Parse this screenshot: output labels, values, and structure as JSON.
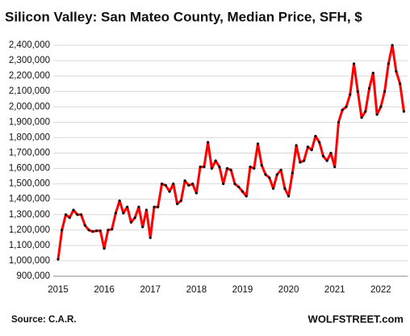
{
  "chart_data": {
    "type": "line",
    "title": "Silicon Valley: San Mateo County, Median Price, SFH, $",
    "source": "Source: C.A.R.",
    "brand": "WOLFSTREET.com",
    "categories": [
      "2015",
      null,
      null,
      null,
      null,
      null,
      null,
      null,
      null,
      null,
      null,
      null,
      "2016",
      null,
      null,
      null,
      null,
      null,
      null,
      null,
      null,
      null,
      null,
      null,
      "2017",
      null,
      null,
      null,
      null,
      null,
      null,
      null,
      null,
      null,
      null,
      null,
      "2018",
      null,
      null,
      null,
      null,
      null,
      null,
      null,
      null,
      null,
      null,
      null,
      "2019",
      null,
      null,
      null,
      null,
      null,
      null,
      null,
      null,
      null,
      null,
      null,
      "2020",
      null,
      null,
      null,
      null,
      null,
      null,
      null,
      null,
      null,
      null,
      null,
      "2021",
      null,
      null,
      null,
      null,
      null,
      null,
      null,
      null,
      null,
      null,
      null,
      "2022",
      null,
      null,
      null,
      null,
      null,
      null
    ],
    "series": [
      {
        "color": "#ff0000",
        "marker_color": "#111111",
        "values": [
          1010000,
          1200000,
          1300000,
          1280000,
          1330000,
          1300000,
          1300000,
          1230000,
          1200000,
          1190000,
          1195000,
          1195000,
          1080000,
          1200000,
          1205000,
          1310000,
          1390000,
          1310000,
          1350000,
          1250000,
          1280000,
          1350000,
          1220000,
          1330000,
          1150000,
          1350000,
          1350000,
          1500000,
          1490000,
          1450000,
          1500000,
          1370000,
          1390000,
          1520000,
          1490000,
          1500000,
          1440000,
          1610000,
          1610000,
          1770000,
          1600000,
          1650000,
          1610000,
          1500000,
          1600000,
          1590000,
          1500000,
          1480000,
          1450000,
          1420000,
          1610000,
          1600000,
          1760000,
          1620000,
          1560000,
          1540000,
          1470000,
          1560000,
          1590000,
          1470000,
          1420000,
          1570000,
          1750000,
          1640000,
          1650000,
          1740000,
          1720000,
          1810000,
          1770000,
          1680000,
          1650000,
          1700000,
          1610000,
          1900000,
          1980000,
          2000000,
          2080000,
          2280000,
          2100000,
          1930000,
          1970000,
          2120000,
          2220000,
          1950000,
          2000000,
          2100000,
          2280000,
          2400000,
          2230000,
          2150000,
          1970000
        ]
      }
    ],
    "ylim": [
      900000,
      2400000
    ],
    "yticks": [
      {
        "value": 900000,
        "label": "900,000"
      },
      {
        "value": 1000000,
        "label": "1,000,000"
      },
      {
        "value": 1100000,
        "label": "1,100,000"
      },
      {
        "value": 1200000,
        "label": "1,200,000"
      },
      {
        "value": 1300000,
        "label": "1,300,000"
      },
      {
        "value": 1400000,
        "label": "1,400,000"
      },
      {
        "value": 1500000,
        "label": "1,500,000"
      },
      {
        "value": 1600000,
        "label": "1,600,000"
      },
      {
        "value": 1700000,
        "label": "1,700,000"
      },
      {
        "value": 1800000,
        "label": "1,800,000"
      },
      {
        "value": 1900000,
        "label": "1,900,000"
      },
      {
        "value": 2000000,
        "label": "2,000,000"
      },
      {
        "value": 2100000,
        "label": "2,100,000"
      },
      {
        "value": 2200000,
        "label": "2,200,000"
      },
      {
        "value": 2300000,
        "label": "2,300,000"
      },
      {
        "value": 2400000,
        "label": "2,400,000"
      }
    ],
    "grid": true
  }
}
